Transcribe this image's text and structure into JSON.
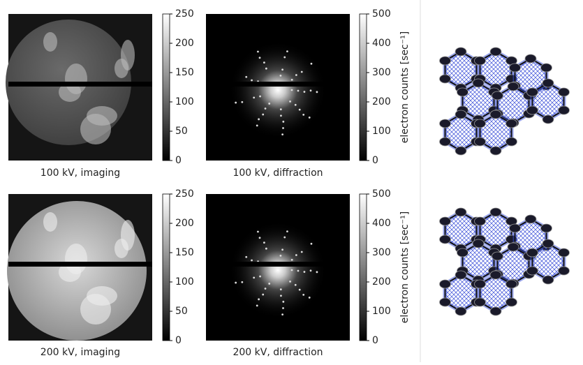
{
  "panels": [
    {
      "caption": "100 kV, imaging",
      "kind": "imaging",
      "colorbar": {
        "lim": [
          0,
          250
        ],
        "ticks": [
          0,
          50,
          100,
          150,
          200,
          250
        ]
      }
    },
    {
      "caption": "100 kV, diffraction",
      "kind": "diffraction",
      "colorbar": {
        "lim": [
          0,
          500
        ],
        "ticks": [
          0,
          100,
          200,
          300,
          400,
          500
        ],
        "label": "electron counts [sec⁻¹]"
      }
    },
    {
      "caption": "200 kV, imaging",
      "kind": "imaging",
      "colorbar": {
        "lim": [
          0,
          250
        ],
        "ticks": [
          0,
          50,
          100,
          150,
          200,
          250
        ]
      }
    },
    {
      "caption": "200 kV, diffraction",
      "kind": "diffraction",
      "colorbar": {
        "lim": [
          0,
          500
        ],
        "ticks": [
          0,
          100,
          200,
          300,
          400,
          500
        ],
        "label": "electron counts [sec⁻¹]"
      }
    }
  ]
}
